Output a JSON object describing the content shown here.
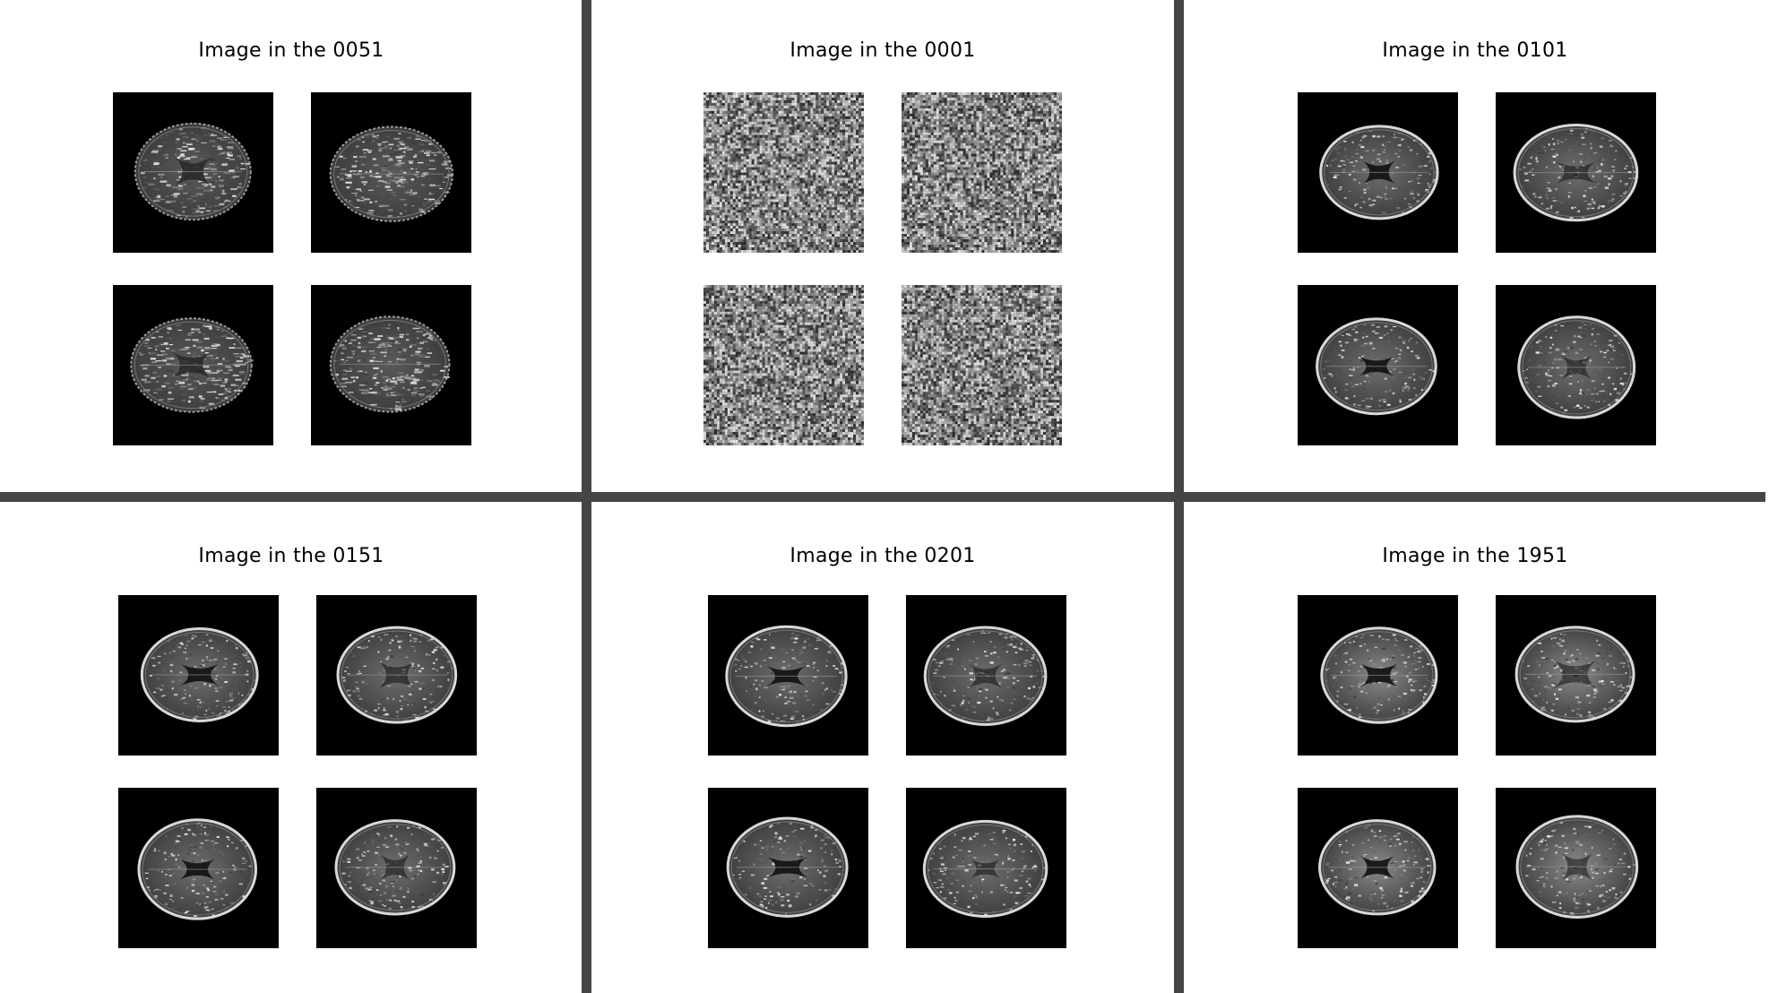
{
  "panels": [
    {
      "title": "Image in the 0051",
      "kind": "brain-early"
    },
    {
      "title": "Image in the 0001",
      "kind": "noise"
    },
    {
      "title": "Image in the 0101",
      "kind": "brain"
    },
    {
      "title": "Image in the 0151",
      "kind": "brain"
    },
    {
      "title": "Image in the 0201",
      "kind": "brain"
    },
    {
      "title": "Image in the 1951",
      "kind": "brain-final"
    }
  ],
  "colors": {
    "divider": "#454545",
    "background": "#ffffff",
    "tile_background": "#000000"
  }
}
